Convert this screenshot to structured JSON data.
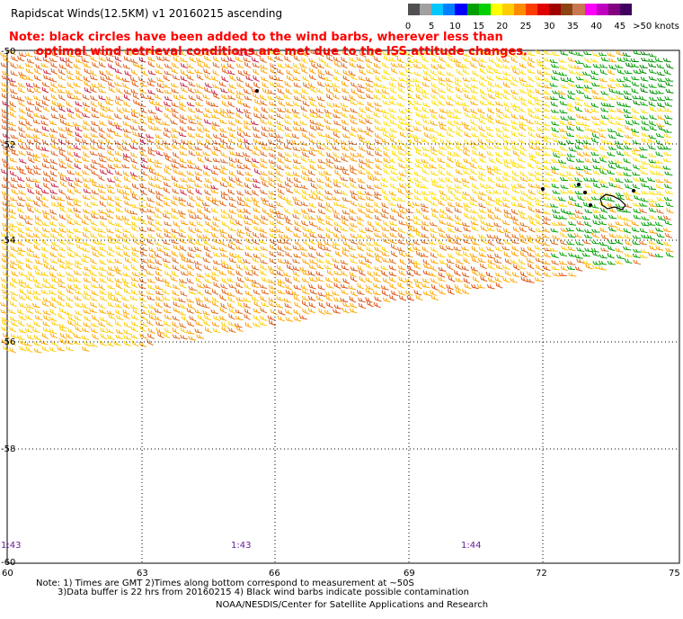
{
  "title": "Rapidscat Winds(12.5KM) v1 20160215 ascending",
  "note": {
    "line1": "Note: black circles have been added to the wind barbs, wherever less than",
    "line2": "optimal wind retrieval conditions are met due to the ISS attitude changes."
  },
  "legend": {
    "unit": "knots",
    "colors": [
      "#505050",
      "#a0a0a0",
      "#00c8ff",
      "#0080ff",
      "#0000ff",
      "#00a000",
      "#00d000",
      "#ffff00",
      "#ffcc00",
      "#ff8c00",
      "#ff3c00",
      "#e00000",
      "#a00000",
      "#8b4513",
      "#c87850",
      "#ff00ff",
      "#c000c0",
      "#800080",
      "#400060"
    ],
    "ticks": [
      "0",
      "5",
      "10",
      "15",
      "20",
      "25",
      "30",
      "35",
      "40",
      "45",
      ">50 knots"
    ]
  },
  "axes": {
    "lat_labels": [
      "-50",
      "-52",
      "-54",
      "-56",
      "-58",
      "-60"
    ],
    "lon_labels": [
      "60",
      "63",
      "66",
      "69",
      "72",
      "75"
    ]
  },
  "times": [
    "1:43",
    "1:43",
    "1:44"
  ],
  "footnotes": {
    "line1": "Note: 1) Times are GMT 2)Times along bottom correspond to measurement at ~50S",
    "line2": "3)Data buffer is 22 hrs from 20160215 4) Black wind barbs indicate possible contamination"
  },
  "credit": "NOAA/NESDIS/Center for Satellite Applications and Research"
}
